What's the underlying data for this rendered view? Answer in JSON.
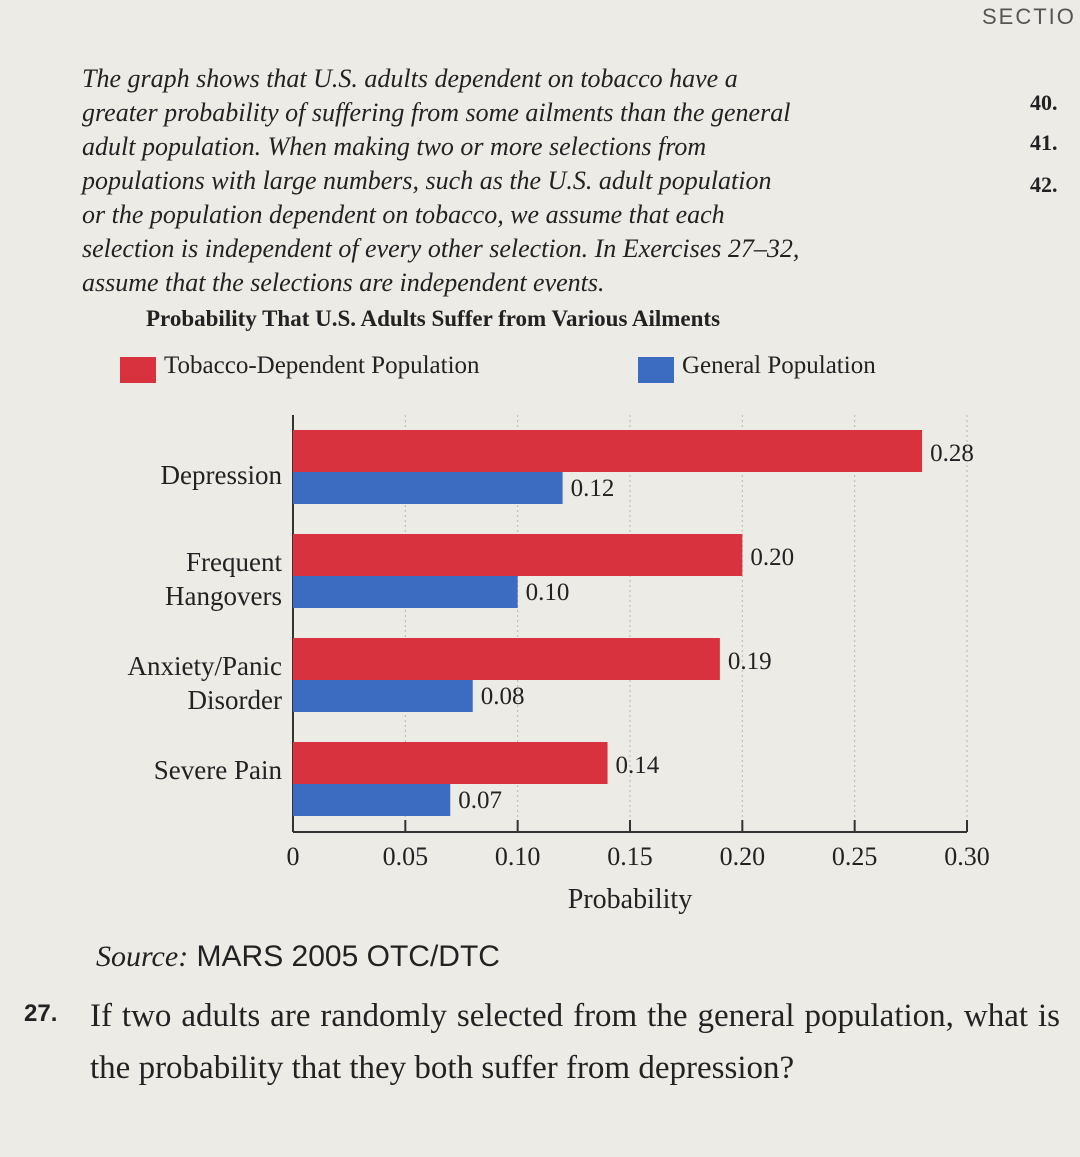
{
  "header": {
    "section": "SECTIO"
  },
  "margin": [
    "40.",
    "41.",
    "42."
  ],
  "intro": [
    "The graph shows that U.S. adults dependent on tobacco have a",
    "greater probability of suffering from some ailments than the general",
    "adult population. When making two or more selections from",
    "populations with large numbers, such as the U.S. adult population",
    "or the population dependent on tobacco, we assume that each",
    "selection is independent of every other selection. In Exercises 27–32,",
    "assume that the selections are independent events."
  ],
  "chart_data": {
    "type": "bar",
    "orientation": "horizontal",
    "title": "Probability That U.S. Adults Suffer from Various Ailments",
    "xlabel": "Probability",
    "categories": [
      "Depression",
      "Frequent Hangovers",
      "Anxiety/Panic Disorder",
      "Severe Pain"
    ],
    "series": [
      {
        "name": "Tobacco-Dependent Population",
        "color": "#d8323f",
        "values": [
          0.28,
          0.2,
          0.19,
          0.14
        ],
        "value_labels": [
          "0.28",
          "0.20",
          "0.19",
          "0.14"
        ]
      },
      {
        "name": "General Population",
        "color": "#3b6cc2",
        "values": [
          0.12,
          0.1,
          0.08,
          0.07
        ],
        "value_labels": [
          "0.12",
          "0.10",
          "0.08",
          "0.07"
        ]
      }
    ],
    "xlim": [
      0,
      0.3
    ],
    "xticks": [
      0,
      0.05,
      {
        "value": 0.1,
        "label": "0.10"
      },
      0.15,
      {
        "value": 0.2,
        "label": "0.20"
      },
      0.25,
      {
        "value": 0.3,
        "label": "0.30"
      }
    ],
    "grid": true,
    "legend": "top"
  },
  "source": {
    "label": "Source:",
    "text": "MARS 2005 OTC/DTC"
  },
  "question": {
    "number": "27.",
    "text": "If two adults are randomly selected from the general population, what is the probability that they both suffer from depression?"
  }
}
